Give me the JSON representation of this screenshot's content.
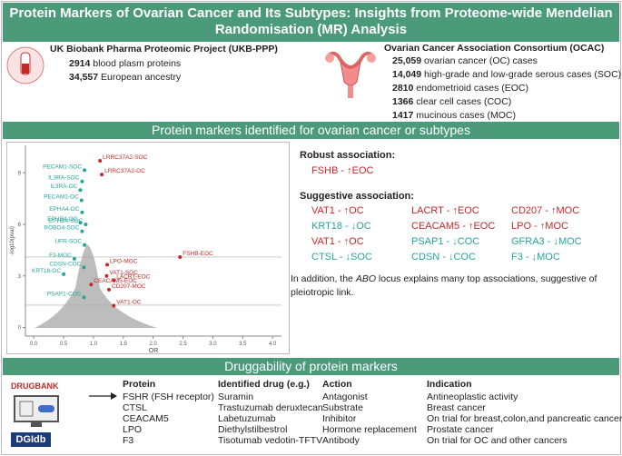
{
  "header": {
    "title": "Protein Markers of Ovarian Cancer and Its Subtypes: Insights from Proteome-wide Mendelian Randomisation (MR) Analysis"
  },
  "ukb": {
    "title": "UK Biobank Pharma Proteomic Project (UKB-PPP)",
    "items": [
      {
        "number": "2914",
        "text": "blood plasm proteins"
      },
      {
        "number": "34,557",
        "text": "European ancestry"
      }
    ]
  },
  "ocac": {
    "title": "Ovarian Cancer Association Consortium (OCAC)",
    "items": [
      {
        "number": "25,059",
        "text": "ovarian cancer (OC) cases"
      },
      {
        "number": "14,049",
        "text": "high-grade and low-grade serous cases (SOC)"
      },
      {
        "number": "2810",
        "text": "endometrioid cases (EOC)"
      },
      {
        "number": "1366",
        "text": "clear cell cases (COC)"
      },
      {
        "number": "1417",
        "text": "mucinous cases (MOC)"
      }
    ]
  },
  "section2": {
    "title": "Protein markers identified for ovarian cancer or subtypes"
  },
  "chart_data": {
    "type": "scatter",
    "xlabel": "OR",
    "ylabel": "-log10(pval)",
    "xlim": [
      -0.14,
      4.15
    ],
    "ylim": [
      -0.5,
      10.6
    ],
    "xticks": [
      {
        "value": 0,
        "label": "0.0"
      },
      {
        "value": 0.5,
        "label": "0.5"
      },
      {
        "value": 1,
        "label": "1.0"
      },
      {
        "value": 1.5,
        "label": "1.5"
      },
      {
        "value": 2,
        "label": "2.0"
      },
      {
        "value": 2.5,
        "label": "2.5"
      },
      {
        "value": 3,
        "label": "3.0"
      },
      {
        "value": 3.5,
        "label": "3.5"
      },
      {
        "value": 4,
        "label": "4.0"
      }
    ],
    "yticks": [
      0,
      3,
      6,
      9
    ],
    "thresholds": [
      4.1,
      1.3
    ],
    "points": [
      {
        "label": "LRRC37A2-SOC",
        "x": 1.11,
        "y": 9.7,
        "color": "#c62828"
      },
      {
        "label": "LRRC37A2-OC",
        "x": 1.14,
        "y": 8.9,
        "color": "#c62828"
      },
      {
        "label": "PECAM1-SOC",
        "x": 0.85,
        "y": 9.15,
        "color": "#26a69a"
      },
      {
        "label": "IL3RA-SOC",
        "x": 0.81,
        "y": 8.5,
        "color": "#26a69a"
      },
      {
        "label": "IL3RA-OC",
        "x": 0.78,
        "y": 8.0,
        "color": "#26a69a"
      },
      {
        "label": "PECAM1-OC",
        "x": 0.8,
        "y": 7.4,
        "color": "#26a69a"
      },
      {
        "label": "EPHA4-OC",
        "x": 0.81,
        "y": 6.7,
        "color": "#26a69a"
      },
      {
        "label": "EPHB4-OC",
        "x": 0.78,
        "y": 6.1,
        "color": "#26a69a"
      },
      {
        "label": "EPHB4-SOC",
        "x": 0.87,
        "y": 6.0,
        "color": "#26a69a"
      },
      {
        "label": "ROBO4-SOC",
        "x": 0.81,
        "y": 5.6,
        "color": "#26a69a"
      },
      {
        "label": "UFR-SOC",
        "x": 0.85,
        "y": 4.8,
        "color": "#26a69a"
      },
      {
        "label": "F3-MOC",
        "x": 0.68,
        "y": 4.0,
        "color": "#26a69a"
      },
      {
        "label": "FSHB-EOC",
        "x": 2.45,
        "y": 4.1,
        "color": "#c62828"
      },
      {
        "label": "CDSN-COC",
        "x": 0.84,
        "y": 3.5,
        "color": "#26a69a"
      },
      {
        "label": "LPO-MOC",
        "x": 1.23,
        "y": 3.65,
        "color": "#c62828"
      },
      {
        "label": "KRT18-OC",
        "x": 0.5,
        "y": 3.1,
        "color": "#26a69a"
      },
      {
        "label": "VAT1-SOC",
        "x": 1.22,
        "y": 3.0,
        "color": "#c62828"
      },
      {
        "label": "LACRT-EOC",
        "x": 1.34,
        "y": 2.75,
        "color": "#c62828"
      },
      {
        "label": "CEACAM5-EOC",
        "x": 0.96,
        "y": 2.5,
        "color": "#c62828"
      },
      {
        "label": "CD207-MOC",
        "x": 1.26,
        "y": 2.2,
        "color": "#c62828"
      },
      {
        "label": "PSAP1-COC",
        "x": 0.84,
        "y": 1.75,
        "color": "#26a69a"
      },
      {
        "label": "VAT1-OC",
        "x": 1.34,
        "y": 1.27,
        "color": "#c62828"
      }
    ]
  },
  "robust": {
    "title": "Robust association:",
    "items": [
      {
        "text": "FSHB - ↑EOC",
        "color": "#c62828"
      }
    ]
  },
  "suggestive": {
    "title": "Suggestive association:",
    "items": [
      {
        "text": "VAT1 - ↑OC",
        "color": "#c62828"
      },
      {
        "text": "LACRT - ↑EOC",
        "color": "#c62828"
      },
      {
        "text": "CD207 - ↑MOC",
        "color": "#c62828"
      },
      {
        "text": "KRT18 - ↓OC",
        "color": "#26a69a"
      },
      {
        "text": "CEACAM5 - ↑EOC",
        "color": "#c62828"
      },
      {
        "text": "LPO - ↑MOC",
        "color": "#c62828"
      },
      {
        "text": "VAT1 - ↑OC",
        "color": "#c62828"
      },
      {
        "text": "PSAP1 - ↓COC",
        "color": "#26a69a"
      },
      {
        "text": "GFRA3 - ↓MOC",
        "color": "#26a69a"
      },
      {
        "text": "CTSL - ↓SOC",
        "color": "#26a69a"
      },
      {
        "text": "CDSN - ↓COC",
        "color": "#26a69a"
      },
      {
        "text": "F3 - ↓MOC",
        "color": "#26a69a"
      }
    ]
  },
  "note": {
    "before": "In addition, the ",
    "italic": "ABO",
    "after": " locus explains many top associations, suggestive of pleiotropic link."
  },
  "section3": {
    "title": "Druggability of protein markers"
  },
  "logos": {
    "drugbank": "DRUGBANK",
    "dgidb": "DGIdb"
  },
  "table": {
    "header": [
      "Protein",
      "Identified drug (e.g.)",
      "Action",
      "Indication"
    ],
    "rows": [
      [
        "FSHR (FSH receptor)",
        "Suramin",
        "Antagonist",
        "Antineoplastic activity"
      ],
      [
        "CTSL",
        "Trastuzumab deruxtecan",
        "Substrate",
        "Breast cancer"
      ],
      [
        "CEACAM5",
        "Labetuzumab",
        "Inhibitor",
        "On trial for breast,colon,and pancreatic cancer"
      ],
      [
        "LPO",
        "Diethylstilbestrol",
        "Hormone replacement",
        "Prostate cancer"
      ],
      [
        "F3",
        "Tisotumab vedotin-TFTV",
        "Antibody",
        "On trial for OC and other cancers"
      ]
    ]
  }
}
